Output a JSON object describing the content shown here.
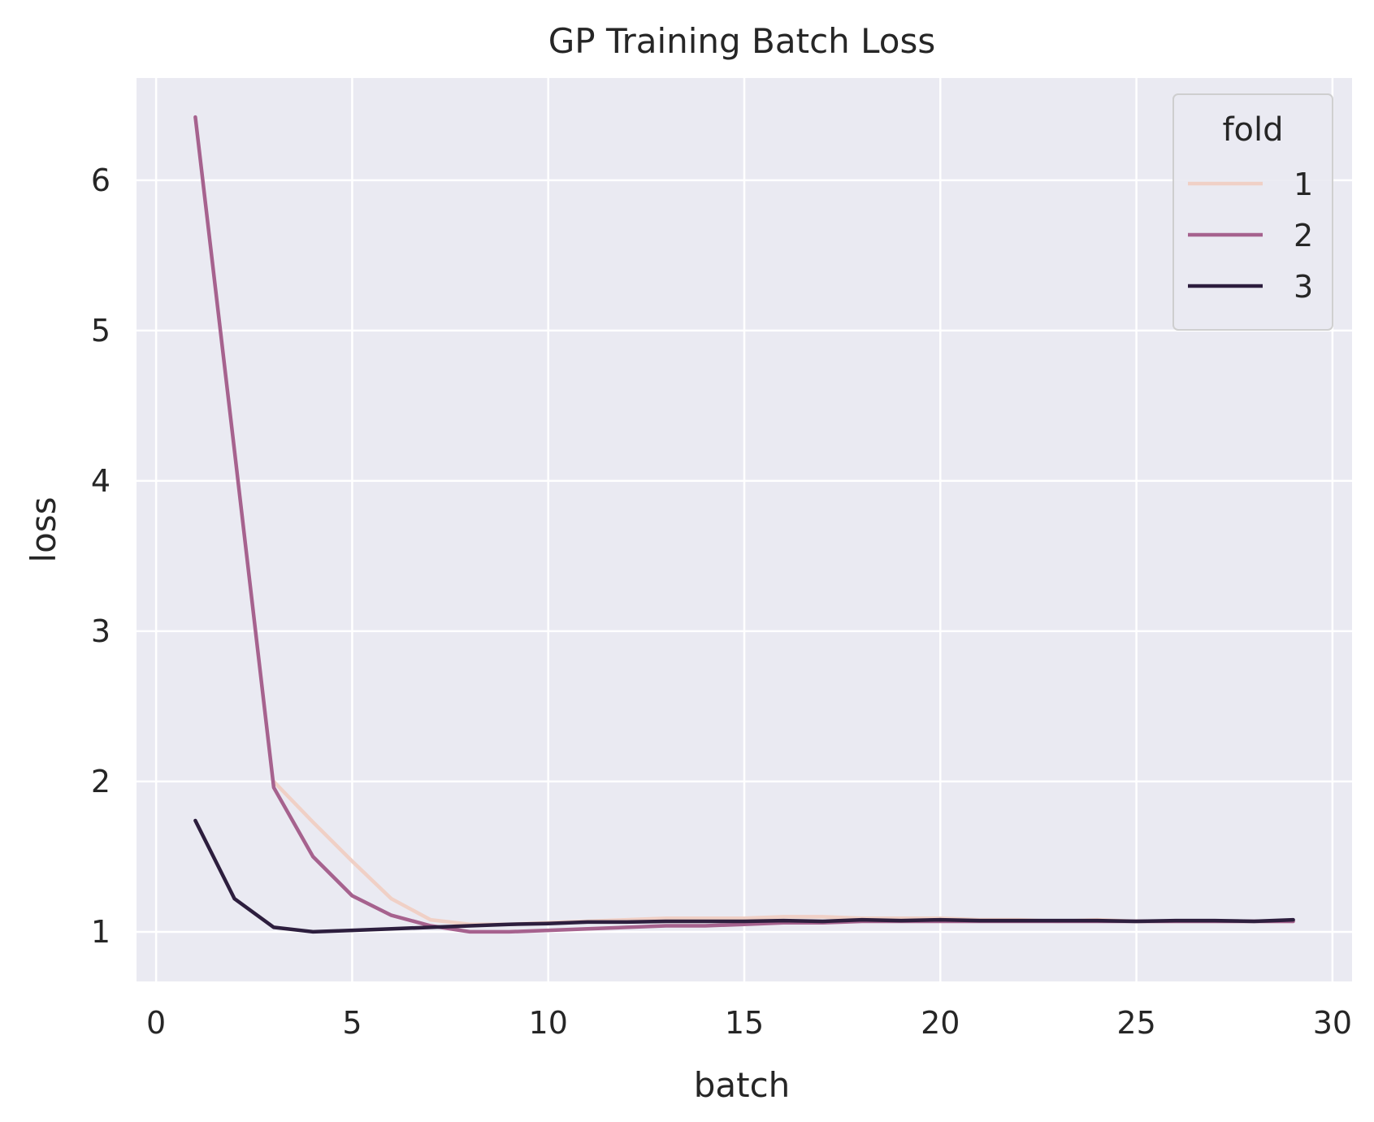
{
  "chart_data": {
    "type": "line",
    "title": "GP Training Batch Loss",
    "xlabel": "batch",
    "ylabel": "loss",
    "xlim": [
      -0.5,
      30.5
    ],
    "ylim": [
      0.67,
      6.68
    ],
    "xticks": [
      0,
      5,
      10,
      15,
      20,
      25,
      30
    ],
    "yticks": [
      1,
      2,
      3,
      4,
      5,
      6
    ],
    "grid": true,
    "legend": {
      "title": "fold",
      "placement": "top-right"
    },
    "series": [
      {
        "name": "1",
        "color": "#f0d0c6",
        "x": [
          3,
          4,
          5,
          6,
          7,
          8,
          9,
          10,
          11,
          12,
          13,
          14,
          15,
          16,
          17,
          18,
          19,
          20,
          21,
          22,
          23,
          24,
          25,
          26,
          27,
          28,
          29
        ],
        "y": [
          2.0,
          1.73,
          1.47,
          1.22,
          1.08,
          1.05,
          1.05,
          1.06,
          1.07,
          1.08,
          1.09,
          1.09,
          1.09,
          1.1,
          1.1,
          1.09,
          1.09,
          1.09,
          1.08,
          1.08,
          1.07,
          1.08,
          1.07,
          1.07,
          1.07,
          1.07,
          1.07
        ]
      },
      {
        "name": "2",
        "color": "#a6628e",
        "x": [
          1,
          2,
          3,
          4,
          5,
          6,
          7,
          8,
          9,
          10,
          11,
          12,
          13,
          14,
          15,
          16,
          17,
          18,
          19,
          20,
          21,
          22,
          23,
          24,
          25,
          26,
          27,
          28,
          29
        ],
        "y": [
          6.42,
          4.2,
          1.96,
          1.5,
          1.24,
          1.11,
          1.04,
          1.0,
          1.0,
          1.01,
          1.02,
          1.03,
          1.04,
          1.04,
          1.05,
          1.06,
          1.06,
          1.07,
          1.07,
          1.07,
          1.07,
          1.07,
          1.07,
          1.07,
          1.07,
          1.07,
          1.07,
          1.07,
          1.07
        ]
      },
      {
        "name": "3",
        "color": "#2d1e3e",
        "x": [
          1,
          2,
          3,
          4,
          5,
          6,
          7,
          8,
          9,
          10,
          11,
          12,
          13,
          14,
          15,
          16,
          17,
          18,
          19,
          20,
          21,
          22,
          23,
          24,
          25,
          26,
          27,
          28,
          29
        ],
        "y": [
          1.74,
          1.22,
          1.03,
          1.0,
          1.01,
          1.02,
          1.03,
          1.04,
          1.05,
          1.055,
          1.065,
          1.065,
          1.07,
          1.07,
          1.07,
          1.075,
          1.07,
          1.08,
          1.075,
          1.08,
          1.075,
          1.075,
          1.075,
          1.075,
          1.07,
          1.075,
          1.075,
          1.07,
          1.08
        ]
      }
    ]
  }
}
